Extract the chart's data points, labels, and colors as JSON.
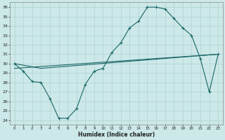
{
  "xlabel": "Humidex (Indice chaleur)",
  "xlim": [
    -0.5,
    23.5
  ],
  "ylim": [
    23.5,
    36.5
  ],
  "yticks": [
    24,
    25,
    26,
    27,
    28,
    29,
    30,
    31,
    32,
    33,
    34,
    35,
    36
  ],
  "xticks": [
    0,
    1,
    2,
    3,
    4,
    5,
    6,
    7,
    8,
    9,
    10,
    11,
    12,
    13,
    14,
    15,
    16,
    17,
    18,
    19,
    20,
    21,
    22,
    23
  ],
  "bg_color": "#cce8e8",
  "grid_color": "#aacccc",
  "line_color": "#1a6666",
  "line1_x": [
    0,
    1,
    2,
    3,
    4,
    5,
    6,
    7,
    8,
    9,
    10,
    11,
    12,
    13,
    14,
    15,
    16,
    17,
    18,
    19,
    20,
    21,
    22,
    23
  ],
  "line1_y": [
    30.0,
    29.2,
    28.1,
    28.0,
    26.3,
    24.2,
    24.2,
    25.2,
    27.8,
    29.2,
    29.5,
    31.2,
    32.2,
    33.8,
    34.5,
    36.0,
    36.0,
    35.8,
    34.8,
    33.8,
    33.0,
    30.5,
    27.0,
    31.0
  ],
  "line2_x": [
    0,
    3,
    23
  ],
  "line2_y": [
    30.0,
    29.5,
    31.0
  ],
  "line3_x": [
    0,
    23
  ],
  "line3_y": [
    29.5,
    31.0
  ]
}
